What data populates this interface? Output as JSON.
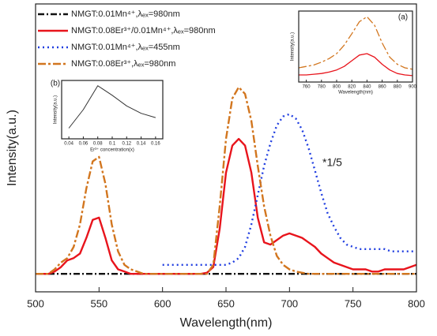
{
  "chart_data": [
    {
      "type": "line",
      "xlabel": "Wavelength(nm)",
      "ylabel": "Intensity(a.u.)",
      "annotation": "*1/5",
      "xlim": [
        500,
        800
      ],
      "ylim": [
        -8,
        120
      ],
      "xticks": [
        500,
        550,
        600,
        650,
        700,
        750,
        800
      ],
      "x": [
        500,
        505,
        510,
        515,
        520,
        525,
        530,
        535,
        540,
        545,
        550,
        555,
        560,
        565,
        570,
        575,
        580,
        585,
        590,
        595,
        600,
        605,
        610,
        615,
        620,
        625,
        630,
        635,
        640,
        645,
        650,
        655,
        660,
        665,
        670,
        675,
        680,
        685,
        690,
        695,
        700,
        705,
        710,
        715,
        720,
        725,
        730,
        735,
        740,
        745,
        750,
        755,
        760,
        765,
        770,
        775,
        780,
        785,
        790,
        795,
        800
      ],
      "series": [
        {
          "name": "NMGT:0.01Mn⁴⁺,λₑₓ=980nm",
          "color": "#111111",
          "linestyle": "dash-dot",
          "values": [
            0,
            0,
            0,
            0,
            0,
            0,
            0,
            0,
            0,
            0,
            0,
            0,
            0,
            0,
            0,
            0,
            0,
            0,
            0,
            0,
            0,
            0,
            0,
            0,
            0,
            0,
            0,
            0,
            0,
            0,
            0,
            0,
            0,
            0,
            0,
            0,
            0,
            0,
            0,
            0,
            0,
            0,
            0,
            0,
            0,
            0,
            0,
            0,
            0,
            0,
            0,
            0,
            0,
            0,
            0,
            0,
            0,
            0,
            0,
            0,
            0
          ]
        },
        {
          "name": "NMGT:0.08Er³⁺/0.01Mn⁴⁺,λₑₓ=980nm",
          "color": "#e8141c",
          "linestyle": "solid",
          "values": [
            0,
            0,
            0,
            1,
            3,
            6,
            7,
            9,
            16,
            24,
            25,
            16,
            6,
            2,
            1,
            0,
            0,
            0,
            0,
            0,
            0,
            0,
            0,
            0,
            0,
            0,
            0,
            0.5,
            3,
            20,
            45,
            57,
            60,
            57,
            45,
            25,
            14,
            13,
            15,
            17,
            18,
            17,
            16,
            14,
            12,
            9,
            7,
            5,
            4,
            3,
            2,
            2,
            2,
            1,
            1,
            2,
            2,
            2,
            2,
            3,
            4
          ]
        },
        {
          "name": "NMGT:0.01Mn⁴⁺,λₑₓ=455nm",
          "color": "#1f3de0",
          "linestyle": "dotted",
          "values": [
            null,
            null,
            null,
            null,
            null,
            null,
            null,
            null,
            null,
            null,
            null,
            null,
            null,
            null,
            null,
            null,
            null,
            null,
            null,
            null,
            4,
            4,
            4,
            4,
            4,
            4,
            4,
            4,
            4,
            4,
            4,
            5,
            7,
            12,
            22,
            35,
            48,
            58,
            66,
            70,
            71,
            69,
            64,
            56,
            46,
            36,
            27,
            21,
            16,
            13,
            12,
            11,
            11,
            11,
            11,
            11,
            10,
            10,
            10,
            10,
            10
          ]
        },
        {
          "name": "NMGT:0.08Er³⁺,λₑₓ=980nm",
          "color": "#d2761f",
          "linestyle": "dash-dot-long",
          "values": [
            0,
            0,
            0,
            2,
            5,
            7,
            12,
            22,
            38,
            50,
            52,
            40,
            22,
            10,
            4,
            2,
            1,
            0,
            0,
            0,
            0,
            0,
            0,
            0,
            0,
            0,
            0,
            0,
            4,
            30,
            60,
            78,
            83,
            80,
            68,
            48,
            30,
            17,
            8,
            4,
            2,
            1,
            0.5,
            0,
            0,
            0,
            0,
            0,
            0,
            0,
            0,
            0,
            0,
            0,
            0,
            0,
            0,
            0,
            0,
            0,
            0
          ]
        }
      ]
    },
    {
      "type": "line",
      "label": "(a)",
      "xlabel": "Wavelength(nm)",
      "ylabel": "Intensity(a.u.)",
      "xlim": [
        750,
        900
      ],
      "ylim": [
        0,
        100
      ],
      "xticks": [
        760,
        780,
        800,
        820,
        840,
        860,
        880,
        900
      ],
      "x": [
        750,
        760,
        770,
        780,
        790,
        800,
        810,
        820,
        830,
        840,
        850,
        860,
        870,
        880,
        890,
        900
      ],
      "series": [
        {
          "color": "#d2761f",
          "linestyle": "dash-dot-long",
          "values": [
            20,
            22,
            24,
            28,
            33,
            40,
            52,
            68,
            85,
            92,
            80,
            55,
            35,
            25,
            20,
            18
          ]
        },
        {
          "color": "#e8141c",
          "linestyle": "solid",
          "values": [
            10,
            10,
            11,
            12,
            14,
            17,
            22,
            30,
            38,
            40,
            35,
            25,
            17,
            12,
            10,
            9
          ]
        }
      ]
    },
    {
      "type": "line",
      "label": "(b)",
      "xlabel": "Er³⁺ concentration(x)",
      "ylabel": "Intensity(a.u.)",
      "xlim": [
        0.03,
        0.17
      ],
      "ylim": [
        0,
        110
      ],
      "xticks": [
        0.04,
        0.06,
        0.08,
        0.1,
        0.12,
        0.14,
        0.16
      ],
      "x": [
        0.04,
        0.06,
        0.08,
        0.1,
        0.12,
        0.14,
        0.16
      ],
      "series": [
        {
          "color": "#333333",
          "linestyle": "solid",
          "values": [
            20,
            55,
            100,
            82,
            62,
            48,
            40
          ]
        }
      ]
    }
  ]
}
